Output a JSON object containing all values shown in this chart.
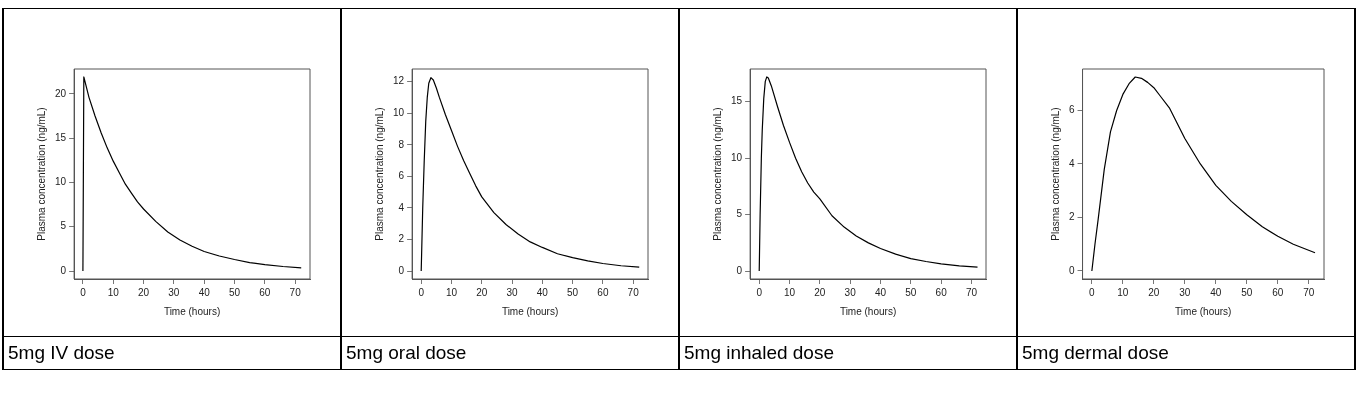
{
  "chart_data": [
    {
      "type": "line",
      "xlabel": "Time (hours)",
      "ylabel": "Plasma concentration (ng/mL)",
      "annotations": [
        "5mg IV dose"
      ],
      "xlim": [
        -2.9,
        74.9
      ],
      "ylim": [
        -0.9,
        22.8
      ],
      "xticks": [
        0,
        10,
        20,
        30,
        40,
        50,
        60,
        70
      ],
      "yticks": [
        0,
        5,
        10,
        15,
        20
      ],
      "x": [
        0,
        0.3,
        2,
        4,
        6,
        8,
        10,
        12,
        14,
        16,
        18,
        20,
        24,
        28,
        32,
        36,
        40,
        45,
        50,
        55,
        60,
        66,
        72
      ],
      "series": [
        {
          "color": "#000000",
          "values": [
            0,
            21.9,
            19.6,
            17.5,
            15.6,
            13.9,
            12.4,
            11.1,
            9.8,
            8.8,
            7.8,
            7.0,
            5.6,
            4.4,
            3.5,
            2.8,
            2.2,
            1.7,
            1.3,
            0.95,
            0.72,
            0.51,
            0.36
          ]
        }
      ]
    },
    {
      "type": "line",
      "xlabel": "Time (hours)",
      "ylabel": "Plasma concentration (ng/mL)",
      "annotations": [
        "5mg oral dose"
      ],
      "xlim": [
        -3,
        74.9
      ],
      "ylim": [
        -0.5,
        12.8
      ],
      "xticks": [
        0,
        10,
        20,
        30,
        40,
        50,
        60,
        70
      ],
      "yticks": [
        0,
        2,
        4,
        6,
        8,
        10,
        12
      ],
      "x": [
        0,
        0.5,
        1,
        1.5,
        2,
        2.5,
        3.2,
        4,
        5,
        6,
        8,
        10,
        12,
        14,
        16,
        18,
        20,
        24,
        28,
        32,
        36,
        40,
        45,
        50,
        55,
        60,
        66,
        72
      ],
      "series": [
        {
          "color": "#000000",
          "values": [
            0,
            4,
            7,
            9.5,
            11,
            11.9,
            12.25,
            12.1,
            11.6,
            11.0,
            9.9,
            8.9,
            7.9,
            7.0,
            6.2,
            5.4,
            4.7,
            3.7,
            2.95,
            2.35,
            1.85,
            1.5,
            1.1,
            0.85,
            0.65,
            0.48,
            0.34,
            0.25
          ]
        }
      ]
    },
    {
      "type": "line",
      "xlabel": "Time (hours)",
      "ylabel": "Plasma concentration (ng/mL)",
      "annotations": [
        "5mg inhaled dose"
      ],
      "xlim": [
        -3,
        74.8
      ],
      "ylim": [
        -0.7,
        17.9
      ],
      "xticks": [
        0,
        10,
        20,
        30,
        40,
        50,
        60,
        70
      ],
      "yticks": [
        0,
        5,
        10,
        15
      ],
      "x": [
        0,
        0.3,
        0.7,
        1,
        1.5,
        2,
        2.5,
        3,
        4,
        6,
        8,
        10,
        12,
        14,
        16,
        18,
        20,
        24,
        28,
        32,
        36,
        40,
        45,
        50,
        55,
        60,
        66,
        72
      ],
      "series": [
        {
          "color": "#000000",
          "values": [
            0,
            5,
            10,
            12.5,
            15.3,
            16.8,
            17.2,
            17.1,
            16.4,
            14.6,
            12.9,
            11.4,
            10.0,
            8.8,
            7.8,
            7.0,
            6.4,
            4.9,
            3.9,
            3.1,
            2.5,
            2.0,
            1.5,
            1.1,
            0.85,
            0.64,
            0.47,
            0.35
          ]
        }
      ]
    },
    {
      "type": "line",
      "xlabel": "Time (hours)",
      "ylabel": "Plasma concentration (ng/mL)",
      "annotations": [
        "5mg dermal dose"
      ],
      "xlim": [
        -3,
        74.9
      ],
      "ylim": [
        -0.3,
        7.55
      ],
      "xticks": [
        0,
        10,
        20,
        30,
        40,
        50,
        60,
        70
      ],
      "yticks": [
        0,
        2,
        4,
        6
      ],
      "x": [
        0,
        1,
        2,
        4,
        6,
        8,
        10,
        12,
        14,
        16,
        18,
        20,
        22,
        25,
        30,
        35,
        40,
        45,
        50,
        55,
        60,
        65,
        72
      ],
      "series": [
        {
          "color": "#000000",
          "values": [
            0,
            1.0,
            1.9,
            3.8,
            5.2,
            6.0,
            6.6,
            7.0,
            7.25,
            7.2,
            7.05,
            6.85,
            6.55,
            6.1,
            4.95,
            4.0,
            3.2,
            2.6,
            2.1,
            1.65,
            1.3,
            1.0,
            0.68
          ]
        }
      ]
    }
  ]
}
